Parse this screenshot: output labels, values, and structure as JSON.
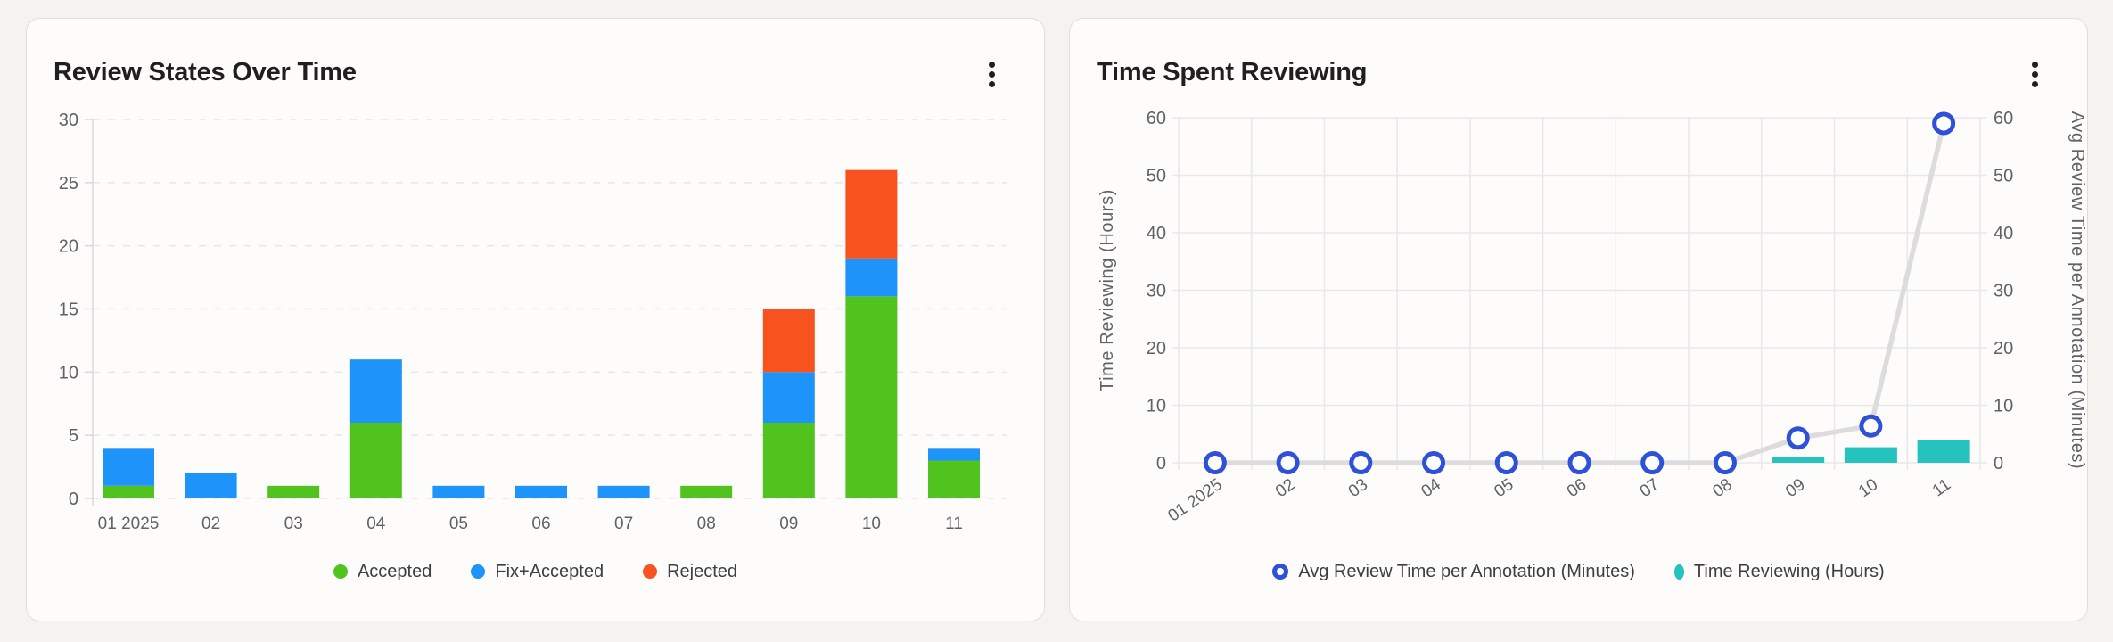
{
  "colors": {
    "page_bg": "#F5F3EF",
    "card_bg": "#FDFCFA",
    "card_border": "#E3DED5",
    "title_text": "#1F1F1F",
    "tick_text": "#5F6368",
    "legend_text": "#3C4043",
    "grid_dashed": "#E6E5EA",
    "grid_solid": "#E8E7EA",
    "axis_line": "#D8D7DB",
    "accepted_green": "#50C31E",
    "fix_accepted_blue": "#1E93FA",
    "rejected_orange": "#F8521E",
    "reviewing_teal": "#26C2BE",
    "avg_time_line": "#DCDCDC",
    "avg_time_marker": "#2F50D9"
  },
  "cards": [
    {
      "menu_icon": "kebab-vertical"
    },
    {
      "menu_icon": "kebab-vertical"
    }
  ],
  "chart_data": [
    {
      "type": "bar",
      "stacked": true,
      "title": "Review States Over Time",
      "categories": [
        "01 2025",
        "02",
        "03",
        "04",
        "05",
        "06",
        "07",
        "08",
        "09",
        "10",
        "11"
      ],
      "series": [
        {
          "name": "Accepted",
          "color_key": "accepted_green",
          "values": [
            1,
            0,
            1,
            6,
            0,
            0,
            0,
            1,
            6,
            16,
            3
          ]
        },
        {
          "name": "Fix+Accepted",
          "color_key": "fix_accepted_blue",
          "values": [
            3,
            2,
            0,
            5,
            1,
            1,
            1,
            0,
            4,
            3,
            1
          ]
        },
        {
          "name": "Rejected",
          "color_key": "rejected_orange",
          "values": [
            0,
            0,
            0,
            0,
            0,
            0,
            0,
            0,
            5,
            7,
            0
          ]
        }
      ],
      "ylim": [
        0,
        30
      ],
      "yticks": [
        0,
        5,
        10,
        15,
        20,
        25,
        30
      ],
      "grid": "horizontal-dashed",
      "legend_position": "bottom"
    },
    {
      "type": "combo",
      "title": "Time Spent Reviewing",
      "categories": [
        "01 2025",
        "02",
        "03",
        "04",
        "05",
        "06",
        "07",
        "08",
        "09",
        "10",
        "11"
      ],
      "line": {
        "name": "Avg Review Time per Annotation (Minutes)",
        "axis": "right",
        "marker": "open-circle",
        "line_color_key": "avg_time_line",
        "marker_color_key": "avg_time_marker",
        "values": [
          0,
          0,
          0,
          0,
          0,
          0,
          0,
          0,
          4.3,
          6.4,
          59
        ]
      },
      "bars": {
        "name": "Time Reviewing (Hours)",
        "axis": "left",
        "color_key": "reviewing_teal",
        "values": [
          0,
          0,
          0,
          0,
          0,
          0,
          0,
          0,
          1,
          2.7,
          3.9
        ]
      },
      "left_axis": {
        "label": "Time Reviewing (Hours)",
        "lim": [
          0,
          60
        ],
        "ticks": [
          0,
          10,
          20,
          30,
          40,
          50,
          60
        ]
      },
      "right_axis": {
        "label": "Avg Review Time per Annotation (Minutes)",
        "lim": [
          0,
          60
        ],
        "ticks": [
          0,
          10,
          20,
          30,
          40,
          50,
          60
        ]
      },
      "grid": "both-solid",
      "legend_position": "bottom"
    }
  ]
}
